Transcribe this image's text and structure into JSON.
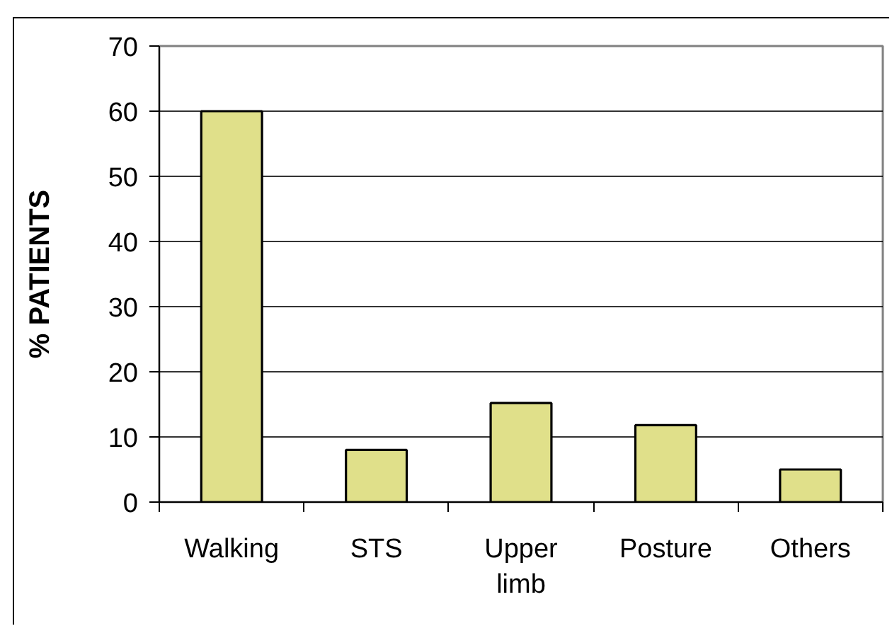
{
  "chart_data": {
    "type": "bar",
    "categories": [
      "Walking",
      "STS",
      "Upper limb",
      "Posture",
      "Others"
    ],
    "values": [
      60,
      8,
      15.2,
      11.8,
      5
    ],
    "color": "#e0e08a",
    "ylabel": "% PATIENTS",
    "ylim": [
      0,
      70
    ],
    "yticks": [
      0,
      10,
      20,
      30,
      40,
      50,
      60,
      70
    ],
    "grid": "y"
  }
}
